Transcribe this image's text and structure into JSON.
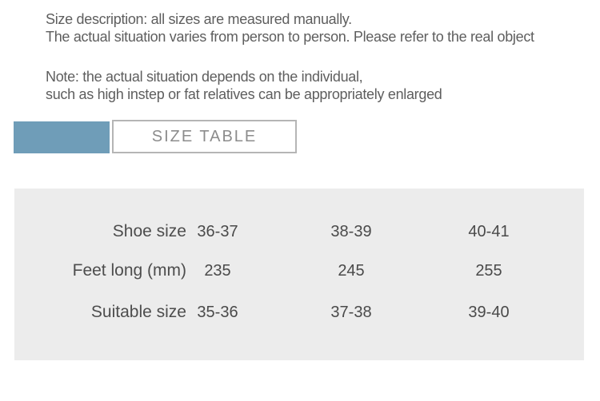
{
  "notes": {
    "description_line1": "Size description: all sizes are measured manually.",
    "description_line2": "The actual situation varies from person to person. Please refer to the real object",
    "note_line1": "Note: the actual situation depends on the individual,",
    "note_line2": "such as high instep or fat relatives can be appropriately enlarged"
  },
  "header": {
    "size_table_label": "SIZE TABLE",
    "accent_color": "#6f9db8",
    "box_border_color": "#b5b5b5",
    "box_text_color": "#8c8c8c"
  },
  "size_table": {
    "panel_background": "#ececec",
    "text_color": "#4d4d4d",
    "rows": [
      {
        "label": "Shoe size",
        "values": [
          "36-37",
          "38-39",
          "40-41"
        ]
      },
      {
        "label": "Feet long (mm)",
        "values": [
          "235",
          "245",
          "255"
        ]
      },
      {
        "label": "Suitable size",
        "values": [
          "35-36",
          "37-38",
          "39-40"
        ]
      }
    ]
  }
}
